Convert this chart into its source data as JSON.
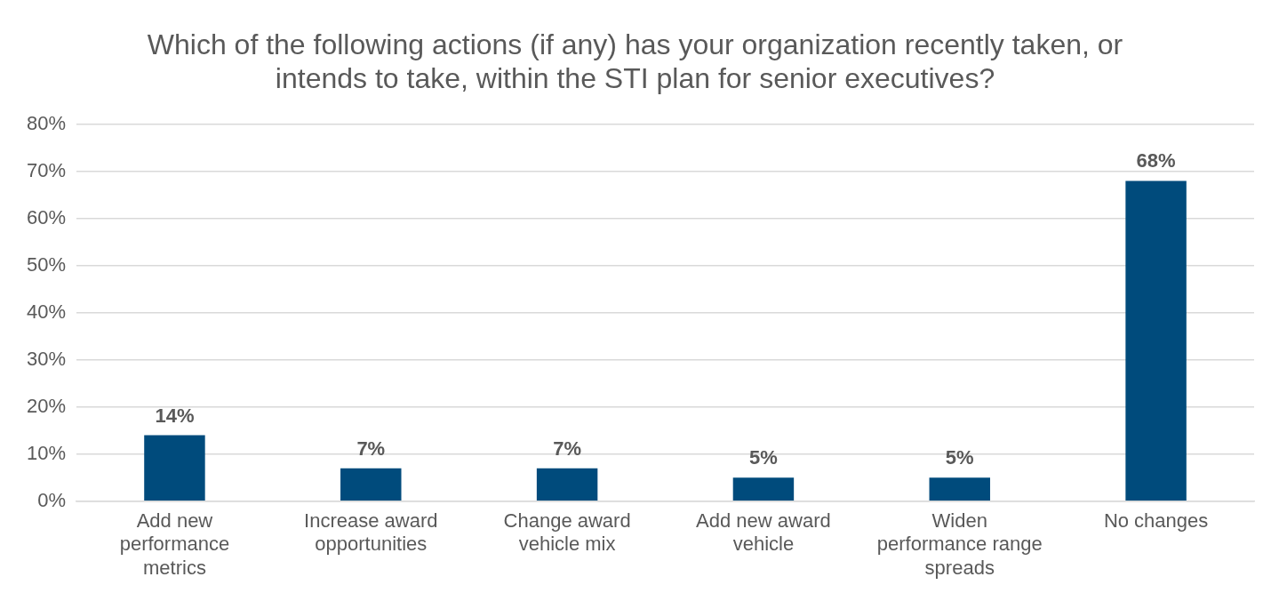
{
  "chart_data": {
    "type": "bar",
    "title": "Which of the following actions (if any) has your organization recently taken, or intends to take, within the STI plan for senior executives?",
    "categories": [
      "Add new performance metrics",
      "Increase award opportunities",
      "Change award vehicle mix",
      "Add new award vehicle",
      "Widen performance range spreads",
      "No changes"
    ],
    "values": [
      14,
      7,
      7,
      5,
      5,
      68
    ],
    "value_labels": [
      "14%",
      "7%",
      "7%",
      "5%",
      "5%",
      "68%"
    ],
    "color": "#004b7c",
    "ylim": [
      0,
      80
    ],
    "yticks": [
      {
        "value": 0,
        "label": "0%"
      },
      {
        "value": 10,
        "label": "10%"
      },
      {
        "value": 20,
        "label": "20%"
      },
      {
        "value": 30,
        "label": "30%"
      },
      {
        "value": 40,
        "label": "40%"
      },
      {
        "value": 50,
        "label": "50%"
      },
      {
        "value": 60,
        "label": "60%"
      },
      {
        "value": 70,
        "label": "70%"
      },
      {
        "value": 80,
        "label": "80%"
      }
    ],
    "grid": "y",
    "legend": false
  }
}
